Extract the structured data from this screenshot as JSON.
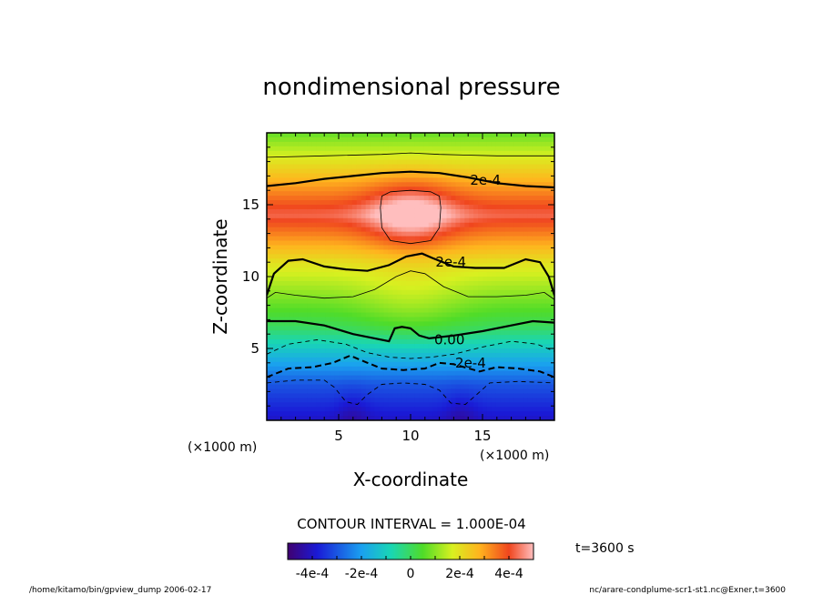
{
  "chart_data": {
    "type": "heatmap",
    "title": "nondimensional pressure",
    "xlabel": "X-coordinate",
    "ylabel": "Z-coordinate",
    "x_unit_left": "(×1000 m)",
    "x_unit_right": "(×1000 m)",
    "xlim": [
      0,
      20
    ],
    "ylim": [
      0,
      20
    ],
    "x_ticks": [
      {
        "v": 5,
        "label": "5"
      },
      {
        "v": 10,
        "label": "10"
      },
      {
        "v": 15,
        "label": "15"
      }
    ],
    "y_ticks": [
      {
        "v": 5,
        "label": "5"
      },
      {
        "v": 10,
        "label": "10"
      },
      {
        "v": 15,
        "label": "15"
      }
    ],
    "contour_interval_text": "CONTOUR INTERVAL = 1.000E-04",
    "time_text": "t=3600 s",
    "contour_labels": [
      {
        "text": "2e-4",
        "x": 15.2,
        "y": 16.7
      },
      {
        "text": "2e-4",
        "x": 12.8,
        "y": 11.0
      },
      {
        "text": "0.00",
        "x": 12.7,
        "y": 5.6
      },
      {
        "text": "-2e-4",
        "x": 14.0,
        "y": 4.0
      }
    ],
    "contours": [
      {
        "level": "3e-4",
        "style": "thin",
        "points": [
          [
            7.9,
            14.8
          ],
          [
            8.0,
            15.6
          ],
          [
            8.6,
            15.9
          ],
          [
            10.0,
            16.0
          ],
          [
            11.4,
            15.9
          ],
          [
            12.0,
            15.6
          ],
          [
            12.1,
            14.8
          ],
          [
            12.0,
            13.4
          ],
          [
            11.4,
            12.5
          ],
          [
            10.0,
            12.3
          ],
          [
            8.6,
            12.5
          ],
          [
            8.0,
            13.4
          ],
          [
            7.9,
            14.8
          ]
        ]
      },
      {
        "level": "2e-4",
        "style": "thick",
        "label": "2e-4",
        "points": [
          [
            0,
            16.3
          ],
          [
            2,
            16.5
          ],
          [
            4,
            16.8
          ],
          [
            6,
            17.0
          ],
          [
            8,
            17.2
          ],
          [
            10,
            17.3
          ],
          [
            12,
            17.2
          ],
          [
            14,
            16.9
          ],
          [
            16,
            16.5
          ],
          [
            18,
            16.3
          ],
          [
            20,
            16.2
          ]
        ]
      },
      {
        "level": "1e-4",
        "style": "thin",
        "points": [
          [
            0,
            18.3
          ],
          [
            4,
            18.4
          ],
          [
            8,
            18.5
          ],
          [
            10,
            18.6
          ],
          [
            12,
            18.5
          ],
          [
            16,
            18.4
          ],
          [
            20,
            18.4
          ]
        ]
      },
      {
        "level": "2e-4",
        "style": "thick",
        "label": "2e-4",
        "points": [
          [
            0,
            8.7
          ],
          [
            0.5,
            10.2
          ],
          [
            1.5,
            11.1
          ],
          [
            2.5,
            11.2
          ],
          [
            4,
            10.7
          ],
          [
            5.5,
            10.5
          ],
          [
            7,
            10.4
          ],
          [
            8.5,
            10.8
          ],
          [
            9.7,
            11.4
          ],
          [
            10.8,
            11.6
          ],
          [
            11.5,
            11.3
          ],
          [
            13,
            10.7
          ],
          [
            14.5,
            10.6
          ],
          [
            16.5,
            10.6
          ],
          [
            18,
            11.2
          ],
          [
            19,
            11.0
          ],
          [
            19.6,
            10.0
          ],
          [
            20,
            8.7
          ]
        ]
      },
      {
        "level": "1e-4",
        "style": "thin",
        "points": [
          [
            0,
            8.5
          ],
          [
            0.6,
            8.9
          ],
          [
            2,
            8.7
          ],
          [
            4,
            8.5
          ],
          [
            6,
            8.6
          ],
          [
            7.5,
            9.1
          ],
          [
            9,
            10.0
          ],
          [
            10,
            10.4
          ],
          [
            11,
            10.2
          ],
          [
            12.3,
            9.3
          ],
          [
            14,
            8.6
          ],
          [
            16,
            8.6
          ],
          [
            18,
            8.7
          ],
          [
            19.3,
            8.9
          ],
          [
            20,
            8.4
          ]
        ]
      },
      {
        "level": "0",
        "style": "thick",
        "label": "0.00",
        "points": [
          [
            0,
            6.9
          ],
          [
            2,
            6.9
          ],
          [
            4,
            6.6
          ],
          [
            6,
            6.0
          ],
          [
            7.5,
            5.7
          ],
          [
            8.5,
            5.5
          ],
          [
            8.9,
            6.4
          ],
          [
            9.4,
            6.5
          ],
          [
            10.0,
            6.4
          ],
          [
            10.6,
            5.9
          ],
          [
            11.3,
            5.7
          ],
          [
            13,
            5.9
          ],
          [
            15,
            6.2
          ],
          [
            17,
            6.6
          ],
          [
            18.5,
            6.9
          ],
          [
            20,
            6.8
          ]
        ]
      },
      {
        "level": "-1e-4",
        "style": "dashed",
        "points": [
          [
            0,
            4.6
          ],
          [
            1.5,
            5.3
          ],
          [
            3.5,
            5.6
          ],
          [
            5.5,
            5.3
          ],
          [
            7,
            4.7
          ],
          [
            8.5,
            4.4
          ],
          [
            10,
            4.3
          ],
          [
            11.5,
            4.4
          ],
          [
            13,
            4.6
          ],
          [
            15,
            5.1
          ],
          [
            17,
            5.5
          ],
          [
            18.8,
            5.3
          ],
          [
            20,
            4.8
          ]
        ]
      },
      {
        "level": "-2e-4",
        "style": "dashed-thick",
        "label": "-2e-4",
        "points": [
          [
            0,
            3.0
          ],
          [
            1.5,
            3.6
          ],
          [
            3.2,
            3.7
          ],
          [
            4.6,
            4.0
          ],
          [
            5.8,
            4.5
          ],
          [
            7,
            4.0
          ],
          [
            8,
            3.6
          ],
          [
            9.5,
            3.5
          ],
          [
            11,
            3.6
          ],
          [
            12,
            4.0
          ],
          [
            13,
            3.9
          ],
          [
            14.8,
            3.4
          ],
          [
            16,
            3.7
          ],
          [
            17.5,
            3.6
          ],
          [
            19,
            3.4
          ],
          [
            20,
            3.0
          ]
        ]
      },
      {
        "level": "-3e-4",
        "style": "dashed",
        "points": [
          [
            0,
            2.6
          ],
          [
            2,
            2.8
          ],
          [
            4,
            2.8
          ],
          [
            4.7,
            2.3
          ],
          [
            5.5,
            1.3
          ],
          [
            6.3,
            1.1
          ],
          [
            7,
            1.8
          ],
          [
            8,
            2.5
          ],
          [
            9.5,
            2.6
          ],
          [
            11,
            2.5
          ],
          [
            12,
            2.1
          ],
          [
            12.8,
            1.2
          ],
          [
            13.8,
            1.1
          ],
          [
            14.6,
            1.8
          ],
          [
            15.5,
            2.6
          ],
          [
            17.5,
            2.7
          ],
          [
            20,
            2.6
          ]
        ]
      }
    ],
    "colorbar": {
      "range": [
        -0.0005,
        0.0005
      ],
      "tick_labels": [
        {
          "v": -0.0004,
          "label": "-4e-4"
        },
        {
          "v": -0.0002,
          "label": "-2e-4"
        },
        {
          "v": 0,
          "label": "0"
        },
        {
          "v": 0.0002,
          "label": "2e-4"
        },
        {
          "v": 0.0004,
          "label": "4e-4"
        }
      ]
    }
  },
  "footer": {
    "left": "/home/kitamo/bin/gpview_dump  2006-02-17",
    "right": "nc/arare-condplume-scr1-st1.nc@Exner,t=3600"
  }
}
